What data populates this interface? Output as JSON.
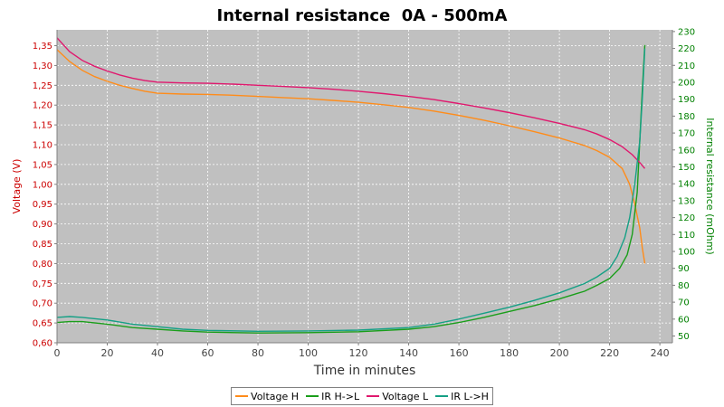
{
  "chart_data": {
    "type": "line",
    "title": "Internal resistance  0A - 500mA",
    "xlabel": "Time in minutes",
    "ylabel_left": "Voltage (V)",
    "ylabel_right": "Internal resistance (mOhm)",
    "xlim": [
      0,
      245
    ],
    "ylim_left": [
      0.6,
      1.39
    ],
    "ylim_right": [
      46,
      231
    ],
    "x_ticks": [
      0,
      20,
      40,
      60,
      80,
      100,
      120,
      140,
      160,
      180,
      200,
      220,
      240
    ],
    "y_left_ticks": [
      "0,60",
      "0,65",
      "0,70",
      "0,75",
      "0,80",
      "0,85",
      "0,90",
      "0,95",
      "1,00",
      "1,05",
      "1,10",
      "1,15",
      "1,20",
      "1,25",
      "1,30",
      "1,35"
    ],
    "y_right_ticks": [
      50,
      60,
      70,
      80,
      90,
      100,
      110,
      120,
      130,
      140,
      150,
      160,
      170,
      180,
      190,
      200,
      210,
      220,
      230
    ],
    "grid": true,
    "legend_position": "bottom",
    "colors": {
      "voltage_h": "#ff8c1a",
      "ir_h_l": "#1a9e1a",
      "voltage_l": "#e0186e",
      "ir_l_h": "#15a085",
      "left_axis": "#cc0000",
      "right_axis": "#008000",
      "plot_bg": "#c0c0c0"
    },
    "series": [
      {
        "name": "Voltage H",
        "axis": "left",
        "color_key": "voltage_h",
        "points": [
          [
            0,
            1.34
          ],
          [
            5,
            1.31
          ],
          [
            10,
            1.288
          ],
          [
            15,
            1.272
          ],
          [
            20,
            1.26
          ],
          [
            25,
            1.25
          ],
          [
            30,
            1.242
          ],
          [
            35,
            1.235
          ],
          [
            40,
            1.23
          ],
          [
            50,
            1.228
          ],
          [
            60,
            1.227
          ],
          [
            70,
            1.225
          ],
          [
            80,
            1.222
          ],
          [
            90,
            1.219
          ],
          [
            100,
            1.216
          ],
          [
            110,
            1.212
          ],
          [
            120,
            1.207
          ],
          [
            130,
            1.201
          ],
          [
            140,
            1.194
          ],
          [
            150,
            1.185
          ],
          [
            160,
            1.174
          ],
          [
            170,
            1.162
          ],
          [
            180,
            1.148
          ],
          [
            190,
            1.133
          ],
          [
            200,
            1.117
          ],
          [
            210,
            1.098
          ],
          [
            215,
            1.085
          ],
          [
            220,
            1.068
          ],
          [
            225,
            1.04
          ],
          [
            228,
            1.0
          ],
          [
            230,
            0.95
          ],
          [
            232,
            0.89
          ],
          [
            233,
            0.84
          ],
          [
            234,
            0.8
          ]
        ]
      },
      {
        "name": "IR H->L",
        "axis": "right",
        "color_key": "ir_h_l",
        "points": [
          [
            0,
            58
          ],
          [
            5,
            58.5
          ],
          [
            10,
            58.5
          ],
          [
            20,
            57
          ],
          [
            30,
            55
          ],
          [
            40,
            54
          ],
          [
            50,
            53
          ],
          [
            60,
            52.3
          ],
          [
            80,
            51.8
          ],
          [
            100,
            52
          ],
          [
            120,
            52.5
          ],
          [
            140,
            54
          ],
          [
            150,
            55.5
          ],
          [
            160,
            58
          ],
          [
            170,
            61
          ],
          [
            180,
            64.5
          ],
          [
            190,
            68
          ],
          [
            200,
            72
          ],
          [
            210,
            76.5
          ],
          [
            215,
            80
          ],
          [
            220,
            84
          ],
          [
            224,
            90
          ],
          [
            227,
            98
          ],
          [
            229,
            110
          ],
          [
            231,
            135
          ],
          [
            232,
            165
          ],
          [
            233,
            195
          ],
          [
            234,
            222
          ]
        ]
      },
      {
        "name": "Voltage L",
        "axis": "left",
        "color_key": "voltage_l",
        "points": [
          [
            0,
            1.37
          ],
          [
            5,
            1.335
          ],
          [
            10,
            1.313
          ],
          [
            15,
            1.298
          ],
          [
            20,
            1.286
          ],
          [
            25,
            1.276
          ],
          [
            30,
            1.268
          ],
          [
            35,
            1.262
          ],
          [
            40,
            1.258
          ],
          [
            50,
            1.256
          ],
          [
            60,
            1.255
          ],
          [
            70,
            1.253
          ],
          [
            80,
            1.25
          ],
          [
            90,
            1.247
          ],
          [
            100,
            1.244
          ],
          [
            110,
            1.24
          ],
          [
            120,
            1.235
          ],
          [
            130,
            1.229
          ],
          [
            140,
            1.222
          ],
          [
            150,
            1.214
          ],
          [
            160,
            1.204
          ],
          [
            170,
            1.193
          ],
          [
            180,
            1.181
          ],
          [
            190,
            1.168
          ],
          [
            200,
            1.154
          ],
          [
            210,
            1.138
          ],
          [
            215,
            1.127
          ],
          [
            220,
            1.113
          ],
          [
            225,
            1.095
          ],
          [
            229,
            1.075
          ],
          [
            232,
            1.055
          ],
          [
            234,
            1.04
          ]
        ]
      },
      {
        "name": "IR L->H",
        "axis": "right",
        "color_key": "ir_l_h",
        "points": [
          [
            0,
            61
          ],
          [
            5,
            61.5
          ],
          [
            10,
            61
          ],
          [
            20,
            59.5
          ],
          [
            30,
            57
          ],
          [
            40,
            55.5
          ],
          [
            50,
            54
          ],
          [
            60,
            53.3
          ],
          [
            80,
            52.8
          ],
          [
            100,
            53
          ],
          [
            120,
            53.5
          ],
          [
            140,
            55
          ],
          [
            150,
            57
          ],
          [
            160,
            60
          ],
          [
            170,
            63.5
          ],
          [
            180,
            67
          ],
          [
            190,
            71
          ],
          [
            200,
            75.5
          ],
          [
            210,
            81
          ],
          [
            215,
            85
          ],
          [
            220,
            90
          ],
          [
            223,
            97
          ],
          [
            226,
            108
          ],
          [
            228,
            120
          ],
          [
            230,
            140
          ],
          [
            232,
            165
          ],
          [
            233,
            190
          ],
          [
            234,
            220
          ]
        ]
      }
    ]
  }
}
